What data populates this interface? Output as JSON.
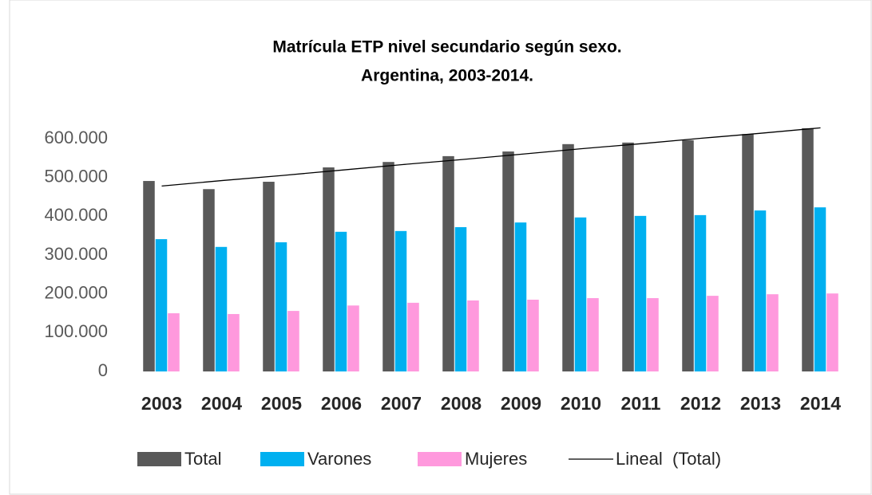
{
  "chart_data": {
    "type": "bar",
    "title": "Matrícula ETP nivel secundario según sexo.",
    "subtitle": "Argentina, 2003-2014.",
    "categories": [
      "2003",
      "2004",
      "2005",
      "2006",
      "2007",
      "2008",
      "2009",
      "2010",
      "2011",
      "2012",
      "2013",
      "2014"
    ],
    "series": [
      {
        "name": "Total",
        "color": "#595959",
        "values": [
          491000,
          470000,
          489000,
          526000,
          540000,
          555000,
          567000,
          586000,
          590000,
          596000,
          612000,
          627000
        ]
      },
      {
        "name": "Varones",
        "color": "#00b0f0",
        "values": [
          341000,
          321000,
          333000,
          360000,
          362000,
          372000,
          384000,
          397000,
          401000,
          403000,
          415000,
          423000
        ]
      },
      {
        "name": "Mujeres",
        "color": "#ff99dd",
        "values": [
          150000,
          148000,
          156000,
          170000,
          177000,
          183000,
          185000,
          189000,
          189000,
          195000,
          199000,
          201000
        ]
      },
      {
        "name": "Lineal  (Total)",
        "color": "#000000",
        "kind": "line",
        "values": [
          478000,
          492000,
          505000,
          519000,
          533000,
          546000,
          560000,
          574000,
          587000,
          601000,
          614000,
          628000
        ]
      }
    ],
    "ylim": [
      0,
      600000
    ],
    "yticks": [
      0,
      {
        "value": 100000,
        "label": "100.000"
      },
      {
        "value": 200000,
        "label": "200.000"
      },
      {
        "value": 300000,
        "label": "300.000"
      },
      {
        "value": 400000,
        "label": "400.000"
      },
      {
        "value": 500000,
        "label": "500.000"
      },
      {
        "value": 600000,
        "label": "600.000"
      }
    ],
    "grid": false
  }
}
